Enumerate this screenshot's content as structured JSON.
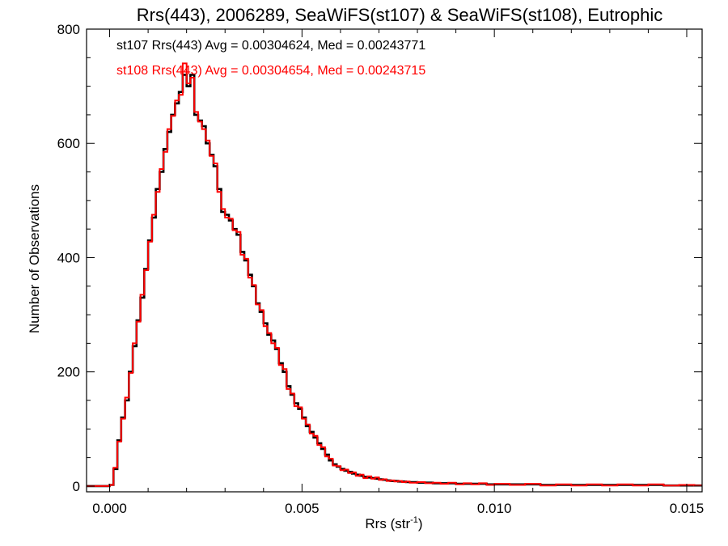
{
  "chart_data": {
    "type": "line",
    "title": "Rrs(443), 2006289, SeaWiFS(st107) & SeaWiFS(st108), Eutrophic",
    "xlabel": {
      "base": "Rrs (str",
      "sup": "-1",
      "tail": ")"
    },
    "ylabel": "Number of Observations",
    "xlim": [
      -0.0006,
      0.0154
    ],
    "ylim": [
      -10,
      800
    ],
    "x_ticks": [
      0.0,
      0.005,
      0.01,
      0.015
    ],
    "x_tick_labels": [
      "0.000",
      "0.005",
      "0.010",
      "0.015"
    ],
    "y_ticks": [
      0,
      200,
      400,
      600,
      800
    ],
    "y_tick_labels": [
      "0",
      "200",
      "400",
      "600",
      "800"
    ],
    "annotations": [
      {
        "text": "st107 Rrs(443) Avg = 0.00304624, Med = 0.00243771",
        "color": "#000000"
      },
      {
        "text": "st108 Rrs(443) Avg = 0.00304654, Med = 0.00243715",
        "color": "#ff0000"
      }
    ],
    "series": [
      {
        "color": "#000000",
        "points": [
          [
            -0.0006,
            0
          ],
          [
            0.0,
            2
          ],
          [
            0.0001,
            30
          ],
          [
            0.0002,
            80
          ],
          [
            0.0003,
            120
          ],
          [
            0.0004,
            150
          ],
          [
            0.0005,
            200
          ],
          [
            0.0006,
            245
          ],
          [
            0.0007,
            290
          ],
          [
            0.0008,
            330
          ],
          [
            0.0009,
            380
          ],
          [
            0.001,
            430
          ],
          [
            0.0011,
            470
          ],
          [
            0.0012,
            520
          ],
          [
            0.0013,
            550
          ],
          [
            0.0014,
            590
          ],
          [
            0.0015,
            620
          ],
          [
            0.0016,
            650
          ],
          [
            0.0017,
            670
          ],
          [
            0.0018,
            690
          ],
          [
            0.0019,
            720
          ],
          [
            0.002,
            700
          ],
          [
            0.0021,
            720
          ],
          [
            0.0022,
            650
          ],
          [
            0.0023,
            640
          ],
          [
            0.0024,
            630
          ],
          [
            0.0025,
            600
          ],
          [
            0.0026,
            580
          ],
          [
            0.0027,
            560
          ],
          [
            0.0028,
            520
          ],
          [
            0.0029,
            480
          ],
          [
            0.003,
            475
          ],
          [
            0.0031,
            465
          ],
          [
            0.0032,
            450
          ],
          [
            0.0033,
            440
          ],
          [
            0.0034,
            410
          ],
          [
            0.0035,
            395
          ],
          [
            0.0036,
            370
          ],
          [
            0.0037,
            350
          ],
          [
            0.0038,
            320
          ],
          [
            0.0039,
            305
          ],
          [
            0.004,
            285
          ],
          [
            0.0041,
            265
          ],
          [
            0.0042,
            255
          ],
          [
            0.0043,
            240
          ],
          [
            0.0044,
            215
          ],
          [
            0.0045,
            200
          ],
          [
            0.0046,
            175
          ],
          [
            0.0047,
            160
          ],
          [
            0.0048,
            145
          ],
          [
            0.0049,
            135
          ],
          [
            0.005,
            120
          ],
          [
            0.0051,
            105
          ],
          [
            0.0052,
            95
          ],
          [
            0.0053,
            85
          ],
          [
            0.0054,
            75
          ],
          [
            0.0055,
            65
          ],
          [
            0.0056,
            55
          ],
          [
            0.0057,
            45
          ],
          [
            0.0058,
            38
          ],
          [
            0.0059,
            34
          ],
          [
            0.006,
            30
          ],
          [
            0.0061,
            27
          ],
          [
            0.0062,
            25
          ],
          [
            0.0063,
            22
          ],
          [
            0.0064,
            20
          ],
          [
            0.0065,
            18
          ],
          [
            0.0066,
            16
          ],
          [
            0.0067,
            15
          ],
          [
            0.0068,
            14
          ],
          [
            0.0069,
            13
          ],
          [
            0.007,
            12
          ],
          [
            0.0071,
            11
          ],
          [
            0.0072,
            10
          ],
          [
            0.0073,
            9
          ],
          [
            0.0074,
            9
          ],
          [
            0.0075,
            8
          ],
          [
            0.0076,
            8
          ],
          [
            0.0077,
            7
          ],
          [
            0.0078,
            7
          ],
          [
            0.008,
            6
          ],
          [
            0.0082,
            6
          ],
          [
            0.0084,
            5
          ],
          [
            0.0086,
            5
          ],
          [
            0.0088,
            5
          ],
          [
            0.009,
            4
          ],
          [
            0.0092,
            4
          ],
          [
            0.0094,
            4
          ],
          [
            0.0096,
            4
          ],
          [
            0.0098,
            3
          ],
          [
            0.01,
            3
          ],
          [
            0.0104,
            3
          ],
          [
            0.0108,
            3
          ],
          [
            0.0112,
            2
          ],
          [
            0.0116,
            2
          ],
          [
            0.012,
            2
          ],
          [
            0.0124,
            2
          ],
          [
            0.0128,
            2
          ],
          [
            0.0132,
            2
          ],
          [
            0.0136,
            2
          ],
          [
            0.014,
            2
          ],
          [
            0.0144,
            1
          ],
          [
            0.0148,
            1
          ],
          [
            0.0152,
            1
          ],
          [
            0.0154,
            1
          ]
        ]
      },
      {
        "color": "#ff0000",
        "points": [
          [
            -0.0006,
            0
          ],
          [
            0.0,
            2
          ],
          [
            0.0001,
            32
          ],
          [
            0.0002,
            78
          ],
          [
            0.0003,
            118
          ],
          [
            0.0004,
            155
          ],
          [
            0.0005,
            198
          ],
          [
            0.0006,
            250
          ],
          [
            0.0007,
            288
          ],
          [
            0.0008,
            335
          ],
          [
            0.0009,
            378
          ],
          [
            0.001,
            428
          ],
          [
            0.0011,
            475
          ],
          [
            0.0012,
            515
          ],
          [
            0.0013,
            555
          ],
          [
            0.0014,
            585
          ],
          [
            0.0015,
            625
          ],
          [
            0.0016,
            648
          ],
          [
            0.0017,
            675
          ],
          [
            0.0018,
            685
          ],
          [
            0.0019,
            740
          ],
          [
            0.002,
            705
          ],
          [
            0.0021,
            715
          ],
          [
            0.0022,
            655
          ],
          [
            0.0023,
            638
          ],
          [
            0.0024,
            625
          ],
          [
            0.0025,
            605
          ],
          [
            0.0026,
            578
          ],
          [
            0.0027,
            565
          ],
          [
            0.0028,
            515
          ],
          [
            0.0029,
            485
          ],
          [
            0.003,
            470
          ],
          [
            0.0031,
            468
          ],
          [
            0.0032,
            448
          ],
          [
            0.0033,
            445
          ],
          [
            0.0034,
            405
          ],
          [
            0.0035,
            398
          ],
          [
            0.0036,
            365
          ],
          [
            0.0037,
            352
          ],
          [
            0.0038,
            318
          ],
          [
            0.0039,
            308
          ],
          [
            0.004,
            280
          ],
          [
            0.0041,
            268
          ],
          [
            0.0042,
            250
          ],
          [
            0.0043,
            242
          ],
          [
            0.0044,
            212
          ],
          [
            0.0045,
            205
          ],
          [
            0.0046,
            170
          ],
          [
            0.0047,
            162
          ],
          [
            0.0048,
            140
          ],
          [
            0.0049,
            138
          ],
          [
            0.005,
            118
          ],
          [
            0.0051,
            108
          ],
          [
            0.0052,
            92
          ],
          [
            0.0053,
            88
          ],
          [
            0.0054,
            72
          ],
          [
            0.0055,
            68
          ],
          [
            0.0056,
            52
          ],
          [
            0.0057,
            48
          ],
          [
            0.0058,
            36
          ],
          [
            0.0059,
            35
          ],
          [
            0.006,
            28
          ],
          [
            0.0061,
            29
          ],
          [
            0.0062,
            23
          ],
          [
            0.0063,
            24
          ],
          [
            0.0064,
            18
          ],
          [
            0.0065,
            20
          ],
          [
            0.0066,
            14
          ],
          [
            0.0067,
            17
          ],
          [
            0.0068,
            13
          ],
          [
            0.0069,
            15
          ],
          [
            0.007,
            11
          ],
          [
            0.0071,
            12
          ],
          [
            0.0072,
            9
          ],
          [
            0.0073,
            10
          ],
          [
            0.0074,
            8
          ],
          [
            0.0075,
            9
          ],
          [
            0.0076,
            7
          ],
          [
            0.0077,
            8
          ],
          [
            0.0078,
            6
          ],
          [
            0.008,
            7
          ],
          [
            0.0082,
            5
          ],
          [
            0.0084,
            6
          ],
          [
            0.0086,
            4
          ],
          [
            0.0088,
            6
          ],
          [
            0.009,
            3
          ],
          [
            0.0092,
            5
          ],
          [
            0.0094,
            3
          ],
          [
            0.0096,
            5
          ],
          [
            0.0098,
            2
          ],
          [
            0.01,
            4
          ],
          [
            0.0104,
            2
          ],
          [
            0.0108,
            4
          ],
          [
            0.0112,
            1
          ],
          [
            0.0116,
            3
          ],
          [
            0.012,
            1
          ],
          [
            0.0124,
            3
          ],
          [
            0.0128,
            1
          ],
          [
            0.0132,
            3
          ],
          [
            0.0136,
            1
          ],
          [
            0.014,
            3
          ],
          [
            0.0144,
            1
          ],
          [
            0.0148,
            2
          ],
          [
            0.0152,
            1
          ],
          [
            0.0154,
            1
          ]
        ]
      }
    ]
  }
}
